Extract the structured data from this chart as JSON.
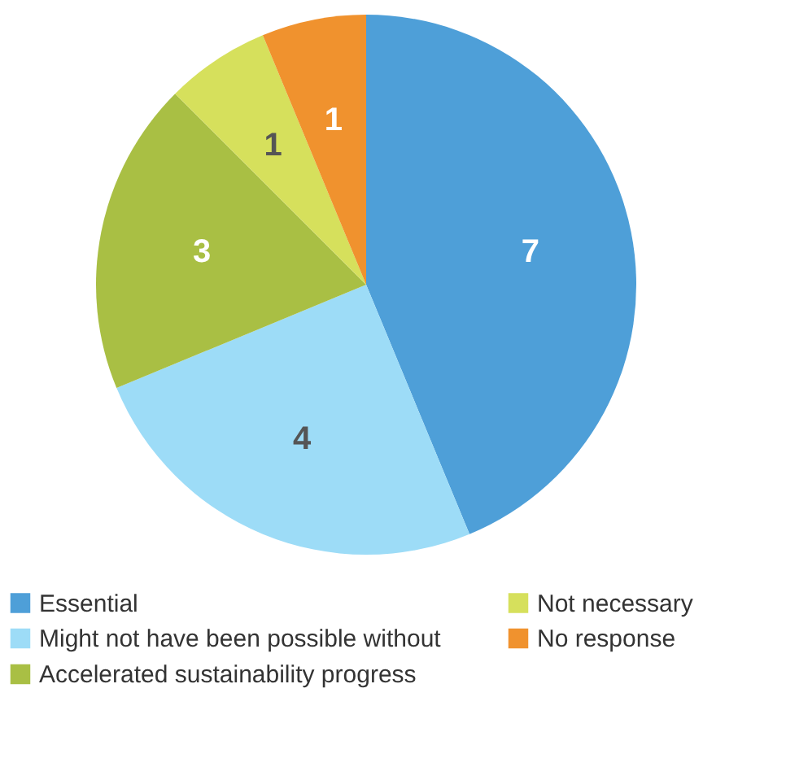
{
  "chart_data": {
    "type": "pie",
    "categories": [
      "Essential",
      "Might not have been possible without",
      "Accelerated sustainability progress",
      "Not necessary",
      "No response"
    ],
    "values": [
      7,
      4,
      3,
      1,
      1
    ],
    "colors": [
      "#4e9fd8",
      "#9ddcf7",
      "#a9bf44",
      "#d6e05c",
      "#f0922e"
    ],
    "data_labels": true,
    "legend": "bottom"
  }
}
